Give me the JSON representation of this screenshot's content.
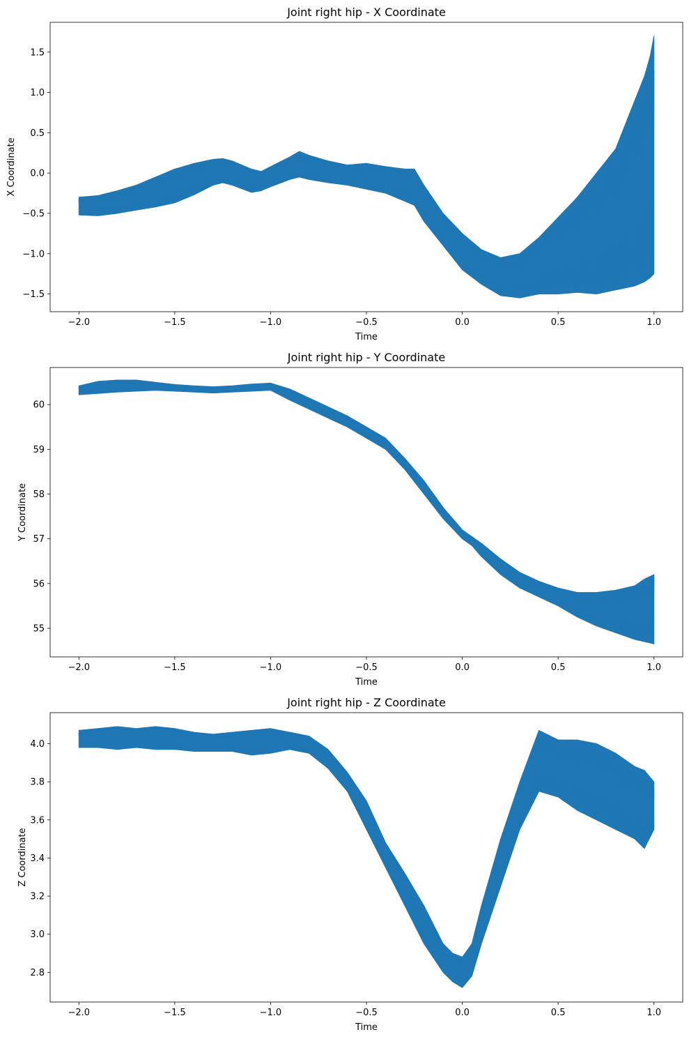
{
  "chart_data": [
    {
      "type": "line",
      "title": "Joint right hip - X Coordinate",
      "xlabel": "Time",
      "ylabel": "X Coordinate",
      "xlim": [
        -2.15,
        1.15
      ],
      "ylim": [
        -1.72,
        1.87
      ],
      "xticks": [
        -2.0,
        -1.5,
        -1.0,
        -0.5,
        0.0,
        0.5,
        1.0
      ],
      "xtick_labels": [
        "−2.0",
        "−1.5",
        "−1.0",
        "−0.5",
        "0.0",
        "0.5",
        "1.0"
      ],
      "yticks": [
        -1.5,
        -1.0,
        -0.5,
        0.0,
        0.5,
        1.0,
        1.5
      ],
      "ytick_labels": [
        "−1.5",
        "−1.0",
        "−0.5",
        "0.0",
        "0.5",
        "1.0",
        "1.5"
      ],
      "grid": false,
      "color": "#1f77b4",
      "series": [
        {
          "x": [
            -2.0,
            -1.9,
            -1.8,
            -1.7,
            -1.6,
            -1.5,
            -1.4,
            -1.3,
            -1.25,
            -1.2,
            -1.1,
            -1.05,
            -1.0,
            -0.9,
            -0.85,
            -0.8,
            -0.7,
            -0.6,
            -0.5,
            -0.4,
            -0.3,
            -0.25,
            -0.2,
            -0.1,
            0.0,
            0.1,
            0.2,
            0.3,
            0.4,
            0.5,
            0.6,
            0.7,
            0.8,
            0.9,
            0.95,
            0.98,
            1.0
          ],
          "upper": [
            -0.3,
            -0.28,
            -0.22,
            -0.15,
            -0.05,
            0.05,
            0.12,
            0.17,
            0.18,
            0.15,
            0.05,
            0.02,
            0.08,
            0.2,
            0.27,
            0.22,
            0.15,
            0.1,
            0.12,
            0.08,
            0.05,
            0.05,
            -0.15,
            -0.5,
            -0.75,
            -0.95,
            -1.05,
            -1.0,
            -0.8,
            -0.55,
            -0.3,
            0.0,
            0.3,
            0.9,
            1.2,
            1.45,
            1.7
          ],
          "lower": [
            -0.52,
            -0.53,
            -0.5,
            -0.46,
            -0.42,
            -0.37,
            -0.27,
            -0.15,
            -0.12,
            -0.15,
            -0.24,
            -0.22,
            -0.17,
            -0.08,
            -0.05,
            -0.08,
            -0.12,
            -0.15,
            -0.2,
            -0.25,
            -0.35,
            -0.4,
            -0.6,
            -0.9,
            -1.2,
            -1.38,
            -1.52,
            -1.55,
            -1.5,
            -1.5,
            -1.48,
            -1.5,
            -1.45,
            -1.4,
            -1.35,
            -1.3,
            -1.25
          ]
        }
      ]
    },
    {
      "type": "line",
      "title": "Joint right hip - Y Coordinate",
      "xlabel": "Time",
      "ylabel": "Y Coordinate",
      "xlim": [
        -2.15,
        1.15
      ],
      "ylim": [
        54.36,
        60.83
      ],
      "xticks": [
        -2.0,
        -1.5,
        -1.0,
        -0.5,
        0.0,
        0.5,
        1.0
      ],
      "xtick_labels": [
        "−2.0",
        "−1.5",
        "−1.0",
        "−0.5",
        "0.0",
        "0.5",
        "1.0"
      ],
      "yticks": [
        55,
        56,
        57,
        58,
        59,
        60
      ],
      "ytick_labels": [
        "55",
        "56",
        "57",
        "58",
        "59",
        "60"
      ],
      "grid": false,
      "color": "#1f77b4",
      "series": [
        {
          "x": [
            -2.0,
            -1.9,
            -1.8,
            -1.7,
            -1.6,
            -1.5,
            -1.4,
            -1.3,
            -1.2,
            -1.1,
            -1.0,
            -0.9,
            -0.8,
            -0.7,
            -0.6,
            -0.5,
            -0.4,
            -0.3,
            -0.2,
            -0.1,
            0.0,
            0.05,
            0.1,
            0.2,
            0.3,
            0.4,
            0.5,
            0.6,
            0.7,
            0.8,
            0.9,
            0.95,
            1.0
          ],
          "upper": [
            60.42,
            60.52,
            60.55,
            60.55,
            60.5,
            60.45,
            60.42,
            60.4,
            60.42,
            60.46,
            60.48,
            60.35,
            60.15,
            59.95,
            59.75,
            59.5,
            59.25,
            58.8,
            58.3,
            57.7,
            57.2,
            57.05,
            56.9,
            56.55,
            56.25,
            56.05,
            55.9,
            55.8,
            55.8,
            55.85,
            55.95,
            56.1,
            56.2
          ],
          "lower": [
            60.22,
            60.25,
            60.28,
            60.3,
            60.32,
            60.3,
            60.28,
            60.26,
            60.28,
            60.3,
            60.32,
            60.1,
            59.9,
            59.7,
            59.5,
            59.25,
            59.0,
            58.55,
            58.0,
            57.45,
            57.0,
            56.85,
            56.6,
            56.2,
            55.9,
            55.7,
            55.5,
            55.25,
            55.05,
            54.9,
            54.75,
            54.7,
            54.65
          ]
        }
      ]
    },
    {
      "type": "line",
      "title": "Joint right hip - Z Coordinate",
      "xlabel": "Time",
      "ylabel": "Z Coordinate",
      "xlim": [
        -2.15,
        1.15
      ],
      "ylim": [
        2.644,
        4.163
      ],
      "xticks": [
        -2.0,
        -1.5,
        -1.0,
        -0.5,
        0.0,
        0.5,
        1.0
      ],
      "xtick_labels": [
        "−2.0",
        "−1.5",
        "−1.0",
        "−0.5",
        "0.0",
        "0.5",
        "1.0"
      ],
      "yticks": [
        2.8,
        3.0,
        3.2,
        3.4,
        3.6,
        3.8,
        4.0
      ],
      "ytick_labels": [
        "2.8",
        "3.0",
        "3.2",
        "3.4",
        "3.6",
        "3.8",
        "4.0"
      ],
      "grid": false,
      "color": "#1f77b4",
      "series": [
        {
          "x": [
            -2.0,
            -1.9,
            -1.8,
            -1.7,
            -1.6,
            -1.5,
            -1.4,
            -1.3,
            -1.2,
            -1.1,
            -1.0,
            -0.9,
            -0.8,
            -0.7,
            -0.6,
            -0.5,
            -0.4,
            -0.3,
            -0.2,
            -0.1,
            -0.05,
            0.0,
            0.05,
            0.1,
            0.2,
            0.3,
            0.4,
            0.5,
            0.6,
            0.7,
            0.8,
            0.9,
            0.95,
            1.0
          ],
          "upper": [
            4.07,
            4.08,
            4.09,
            4.08,
            4.09,
            4.08,
            4.06,
            4.05,
            4.06,
            4.07,
            4.08,
            4.06,
            4.04,
            3.97,
            3.85,
            3.7,
            3.48,
            3.32,
            3.15,
            2.95,
            2.9,
            2.88,
            2.95,
            3.15,
            3.5,
            3.8,
            4.07,
            4.02,
            4.02,
            4.0,
            3.95,
            3.88,
            3.86,
            3.8
          ],
          "lower": [
            3.98,
            3.98,
            3.97,
            3.98,
            3.97,
            3.97,
            3.96,
            3.96,
            3.96,
            3.94,
            3.95,
            3.97,
            3.95,
            3.87,
            3.75,
            3.55,
            3.35,
            3.15,
            2.95,
            2.8,
            2.75,
            2.72,
            2.78,
            2.95,
            3.25,
            3.55,
            3.75,
            3.72,
            3.65,
            3.6,
            3.55,
            3.5,
            3.45,
            3.55
          ]
        }
      ]
    }
  ]
}
